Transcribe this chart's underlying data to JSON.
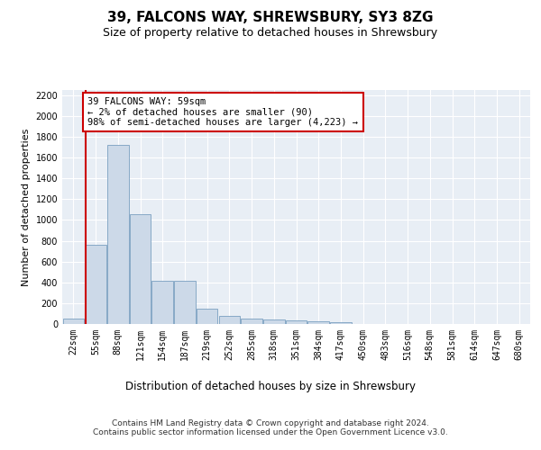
{
  "title": "39, FALCONS WAY, SHREWSBURY, SY3 8ZG",
  "subtitle": "Size of property relative to detached houses in Shrewsbury",
  "xlabel": "Distribution of detached houses by size in Shrewsbury",
  "ylabel": "Number of detached properties",
  "bar_color": "#ccd9e8",
  "bar_edge_color": "#7a9fc0",
  "background_color": "#e8eef5",
  "grid_color": "#ffffff",
  "annotation_line_color": "#cc0000",
  "annotation_box_color": "#ffffff",
  "annotation_box_edge": "#cc0000",
  "annotation_text": "39 FALCONS WAY: 59sqm\n← 2% of detached houses are smaller (90)\n98% of semi-detached houses are larger (4,223) →",
  "property_size_sqm": 59,
  "footer": "Contains HM Land Registry data © Crown copyright and database right 2024.\nContains public sector information licensed under the Open Government Licence v3.0.",
  "bin_labels": [
    "22sqm",
    "55sqm",
    "88sqm",
    "121sqm",
    "154sqm",
    "187sqm",
    "219sqm",
    "252sqm",
    "285sqm",
    "318sqm",
    "351sqm",
    "384sqm",
    "417sqm",
    "450sqm",
    "483sqm",
    "516sqm",
    "548sqm",
    "581sqm",
    "614sqm",
    "647sqm",
    "680sqm"
  ],
  "bar_heights": [
    55,
    760,
    1720,
    1060,
    415,
    415,
    150,
    80,
    50,
    40,
    35,
    25,
    20,
    0,
    0,
    0,
    0,
    0,
    0,
    0,
    0
  ],
  "ylim": [
    0,
    2250
  ],
  "yticks": [
    0,
    200,
    400,
    600,
    800,
    1000,
    1200,
    1400,
    1600,
    1800,
    2000,
    2200
  ],
  "title_fontsize": 11,
  "subtitle_fontsize": 9,
  "tick_fontsize": 7,
  "ylabel_fontsize": 8,
  "xlabel_fontsize": 8.5,
  "footer_fontsize": 6.5
}
